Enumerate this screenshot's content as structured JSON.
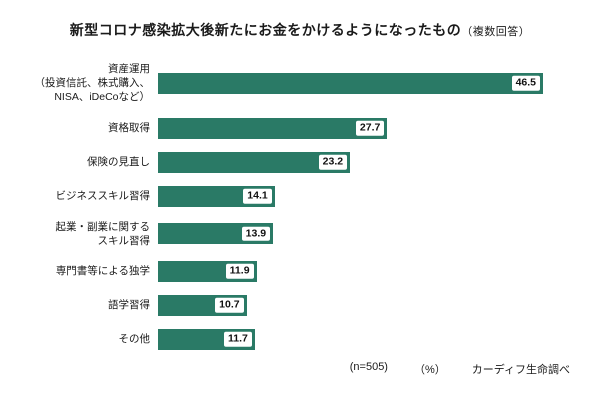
{
  "title": "新型コロナ感染拡大後新たにお金をかけるようになったもの",
  "title_suffix": "（複数回答）",
  "footer": {
    "sample_size": "(n=505)",
    "unit": "（%）",
    "source": "カーディフ生命調べ"
  },
  "colors": {
    "bar": "#2a7a66",
    "value_text": "#111111",
    "background": "#ffffff"
  },
  "chart_data": {
    "type": "bar",
    "orientation": "horizontal",
    "title": "新型コロナ感染拡大後新たにお金をかけるようになったもの（複数回答）",
    "xlabel": "%",
    "ylabel": "",
    "xlim": [
      0,
      50
    ],
    "grid": false,
    "legend": "none",
    "categories": [
      "資産運用\n（投資信託、株式購入、\nNISA、iDeCoなど）",
      "資格取得",
      "保険の見直し",
      "ビジネススキル習得",
      "起業・副業に関する\nスキル習得",
      "専門書等による独学",
      "語学習得",
      "その他"
    ],
    "values": [
      46.5,
      27.7,
      23.2,
      14.1,
      13.9,
      11.9,
      10.7,
      11.7
    ],
    "value_label_format": "one_decimal",
    "bar_color": "#2a7a66"
  }
}
